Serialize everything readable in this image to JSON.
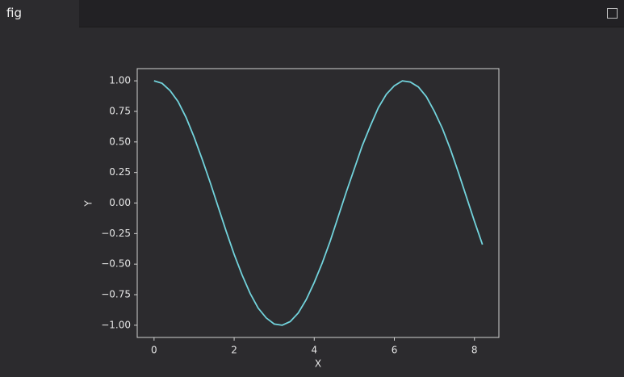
{
  "tab": {
    "label": "fig"
  },
  "chart_data": {
    "type": "line",
    "x_label": "X",
    "y_label": "Y",
    "x": [
      0,
      0.2,
      0.4,
      0.6,
      0.8,
      1.0,
      1.2,
      1.4,
      1.6,
      1.8,
      2.0,
      2.2,
      2.4,
      2.6,
      2.8,
      3.0,
      3.2,
      3.4,
      3.6,
      3.8,
      4.0,
      4.2,
      4.4,
      4.6,
      4.8,
      5.0,
      5.2,
      5.4,
      5.6,
      5.8,
      6.0,
      6.2,
      6.4,
      6.6,
      6.8,
      7.0,
      7.2,
      7.4,
      7.6,
      7.8,
      8.0,
      8.2
    ],
    "series": [
      {
        "color": "#72d3dc",
        "values": [
          1.0,
          0.98,
          0.92,
          0.83,
          0.7,
          0.54,
          0.36,
          0.17,
          -0.03,
          -0.23,
          -0.42,
          -0.59,
          -0.74,
          -0.86,
          -0.94,
          -0.99,
          -1.0,
          -0.97,
          -0.9,
          -0.79,
          -0.65,
          -0.49,
          -0.31,
          -0.11,
          0.09,
          0.28,
          0.47,
          0.63,
          0.78,
          0.89,
          0.96,
          1.0,
          0.99,
          0.95,
          0.87,
          0.75,
          0.61,
          0.44,
          0.25,
          0.05,
          -0.15,
          -0.34
        ]
      }
    ],
    "xlim": [
      -0.42,
      8.61
    ],
    "ylim": [
      -1.1,
      1.1
    ],
    "xticks": [
      0,
      2,
      4,
      6,
      8
    ],
    "yticks": [
      {
        "value": -1,
        "label": "−1.00"
      },
      {
        "value": -0.75,
        "label": "−0.75"
      },
      {
        "value": -0.5,
        "label": "−0.50"
      },
      {
        "value": -0.25,
        "label": "−0.25"
      },
      {
        "value": 0,
        "label": "0.00"
      },
      {
        "value": 0.25,
        "label": "0.25"
      },
      {
        "value": 0.5,
        "label": "0.50"
      },
      {
        "value": 0.75,
        "label": "0.75"
      },
      {
        "value": 1,
        "label": "1.00"
      }
    ]
  }
}
